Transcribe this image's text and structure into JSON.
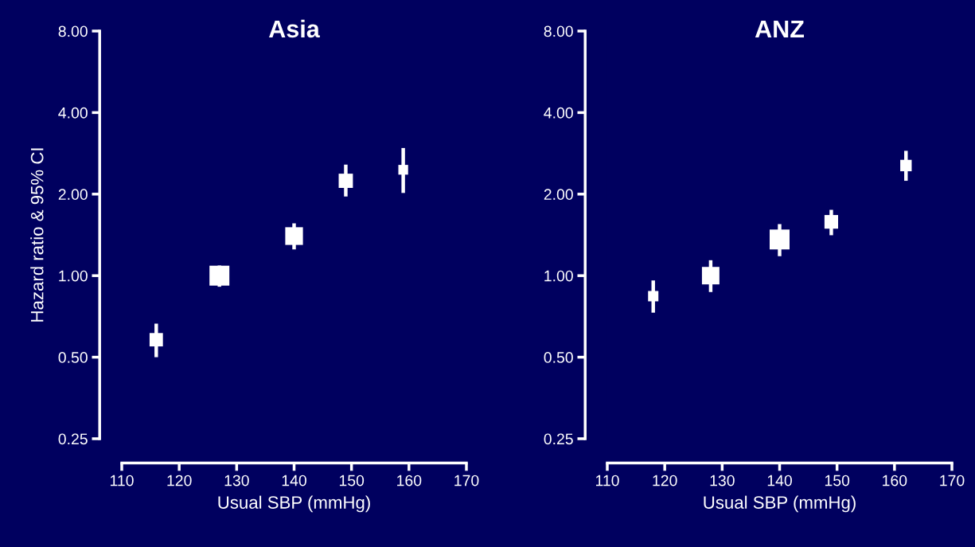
{
  "chart_data": [
    {
      "type": "bubble",
      "title": "Asia",
      "xlabel": "Usual SBP (mmHg)",
      "ylabel": "Hazard ratio & 95% CI",
      "log": true,
      "marker": "square",
      "grid": false,
      "color": "#ffffff",
      "x": [
        116,
        127,
        140,
        149,
        159
      ],
      "values": [
        0.58,
        1.0,
        1.4,
        2.24,
        2.46
      ],
      "errors": [
        [
          0.5,
          0.665
        ],
        [
          0.91,
          1.09
        ],
        [
          1.25,
          1.56
        ],
        [
          1.96,
          2.57
        ],
        [
          2.02,
          2.96
        ]
      ],
      "sizes": [
        0.45,
        1,
        0.79,
        0.51,
        0.24
      ],
      "xlim": [
        110,
        170
      ],
      "xticks": [
        110,
        120,
        130,
        140,
        150,
        160,
        170
      ],
      "ylim": [
        0.25,
        8
      ],
      "yticks": [
        {
          "value": 0.25,
          "label": "0.25"
        },
        {
          "value": 0.5,
          "label": "0.50"
        },
        {
          "value": 1,
          "label": "1.00"
        },
        {
          "value": 2,
          "label": "2.00"
        },
        {
          "value": 4,
          "label": "4.00"
        },
        {
          "value": 8,
          "label": "8.00"
        }
      ]
    },
    {
      "type": "bubble",
      "title": "ANZ",
      "xlabel": "Usual SBP (mmHg)",
      "log": true,
      "marker": "square",
      "grid": false,
      "color": "#ffffff",
      "x": [
        118,
        128,
        140,
        149,
        162
      ],
      "values": [
        0.84,
        1.0,
        1.36,
        1.58,
        2.55
      ],
      "errors": [
        [
          0.73,
          0.96
        ],
        [
          0.87,
          1.14
        ],
        [
          1.18,
          1.55
        ],
        [
          1.41,
          1.75
        ],
        [
          2.24,
          2.89
        ]
      ],
      "sizes": [
        0.27,
        0.77,
        1,
        0.47,
        0.33
      ],
      "xlim": [
        110,
        170
      ],
      "xticks": [
        110,
        120,
        130,
        140,
        150,
        160,
        170
      ],
      "ylim": [
        0.25,
        8
      ],
      "yticks": [
        {
          "value": 0.25,
          "label": "0.25"
        },
        {
          "value": 0.5,
          "label": "0.50"
        },
        {
          "value": 1,
          "label": "1.00"
        },
        {
          "value": 2,
          "label": "2.00"
        },
        {
          "value": 4,
          "label": "4.00"
        },
        {
          "value": 8,
          "label": "8.00"
        }
      ]
    }
  ]
}
